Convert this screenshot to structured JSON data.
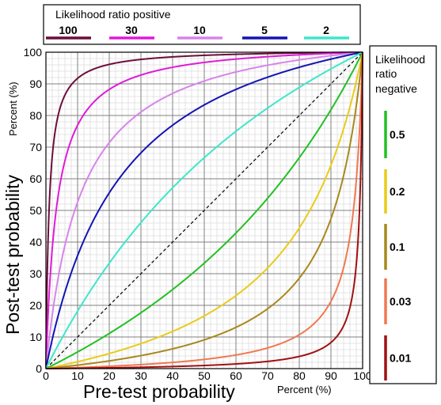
{
  "chart_data": {
    "type": "line",
    "xlabel": "Pre-test probability",
    "xunit": "Percent (%)",
    "ylabel": "Post-test probability",
    "yunit": "Percent (%)",
    "xlim": [
      0,
      100
    ],
    "ylim": [
      0,
      100
    ],
    "grid": true,
    "x_ticks": [
      "0",
      "10",
      "20",
      "30",
      "40",
      "50",
      "60",
      "70",
      "80",
      "90",
      "100"
    ],
    "y_ticks": [
      "0",
      "10",
      "20",
      "30",
      "40",
      "50",
      "60",
      "70",
      "80",
      "90",
      "100"
    ],
    "legend_positive": {
      "title": "Likelihood ratio positive",
      "placement": "top",
      "entries": [
        {
          "label": "100",
          "lr": 100,
          "color": "#6b0f3a"
        },
        {
          "label": "30",
          "lr": 30,
          "color": "#e01ad8"
        },
        {
          "label": "10",
          "lr": 10,
          "color": "#d884ea"
        },
        {
          "label": "5",
          "lr": 5,
          "color": "#1414b4"
        },
        {
          "label": "2",
          "lr": 2,
          "color": "#3ee6cc"
        }
      ]
    },
    "legend_negative": {
      "title_lines": [
        "Likelihood",
        "ratio",
        "negative"
      ],
      "placement": "right",
      "entries": [
        {
          "label": "0.5",
          "lr": 0.5,
          "color": "#22c022"
        },
        {
          "label": "0.2",
          "lr": 0.2,
          "color": "#e8cc18"
        },
        {
          "label": "0.1",
          "lr": 0.1,
          "color": "#a8881c"
        },
        {
          "label": "0.03",
          "lr": 0.03,
          "color": "#f07850"
        },
        {
          "label": "0.01",
          "lr": 0.01,
          "color": "#a01010"
        }
      ]
    },
    "reference_line": {
      "lr": 1,
      "style": "dashed",
      "color": "#000000"
    }
  }
}
